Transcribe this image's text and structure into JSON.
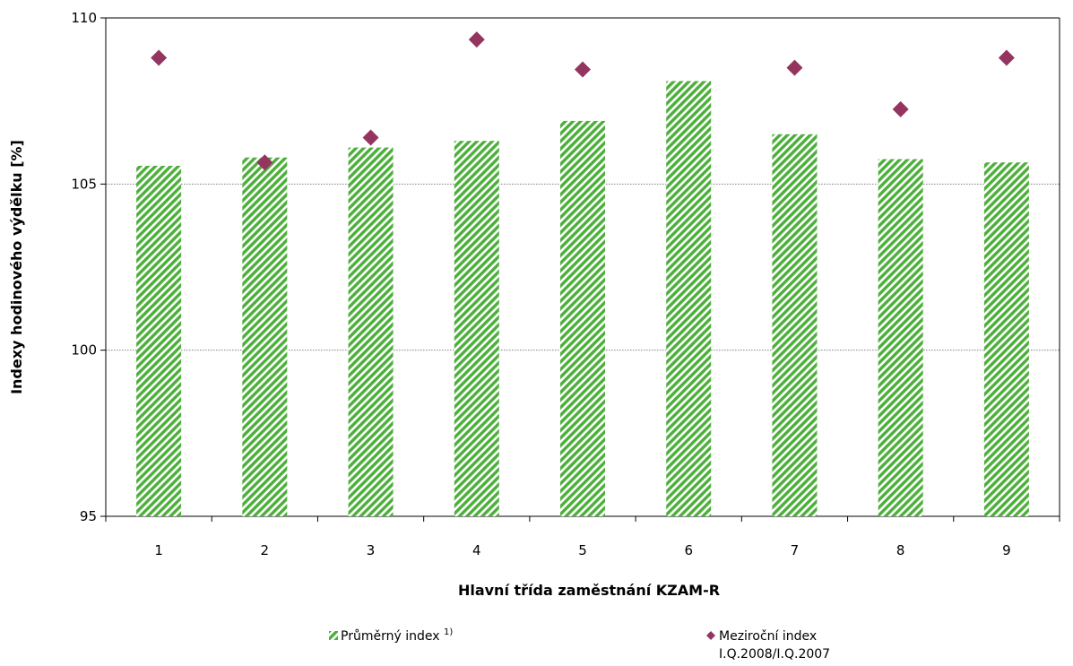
{
  "chart_data": {
    "type": "bar",
    "categories": [
      "1",
      "2",
      "3",
      "4",
      "5",
      "6",
      "7",
      "8",
      "9"
    ],
    "series": [
      {
        "name": "Průměrný index",
        "name_superscript": "1)",
        "kind": "bar",
        "color": "#4caf3a",
        "pattern": "diagonal-hatch",
        "values": [
          105.55,
          105.8,
          106.1,
          106.3,
          106.9,
          108.1,
          106.5,
          105.75,
          105.65
        ]
      },
      {
        "name": "Meziroční index",
        "name_line2": "I.Q.2008/I.Q.2007",
        "kind": "scatter",
        "marker": "diamond",
        "color": "#93355f",
        "values": [
          108.8,
          105.65,
          106.4,
          109.35,
          108.45,
          null,
          108.5,
          107.25,
          108.8
        ]
      }
    ],
    "xlabel": "Hlavní třída zaměstnání KZAM-R",
    "ylabel": "Indexy hodinového výdělku [%]",
    "ylim": [
      95,
      110
    ],
    "yticks": [
      "95",
      "100",
      "105",
      "110"
    ],
    "grid": true,
    "legend_position": "bottom"
  }
}
